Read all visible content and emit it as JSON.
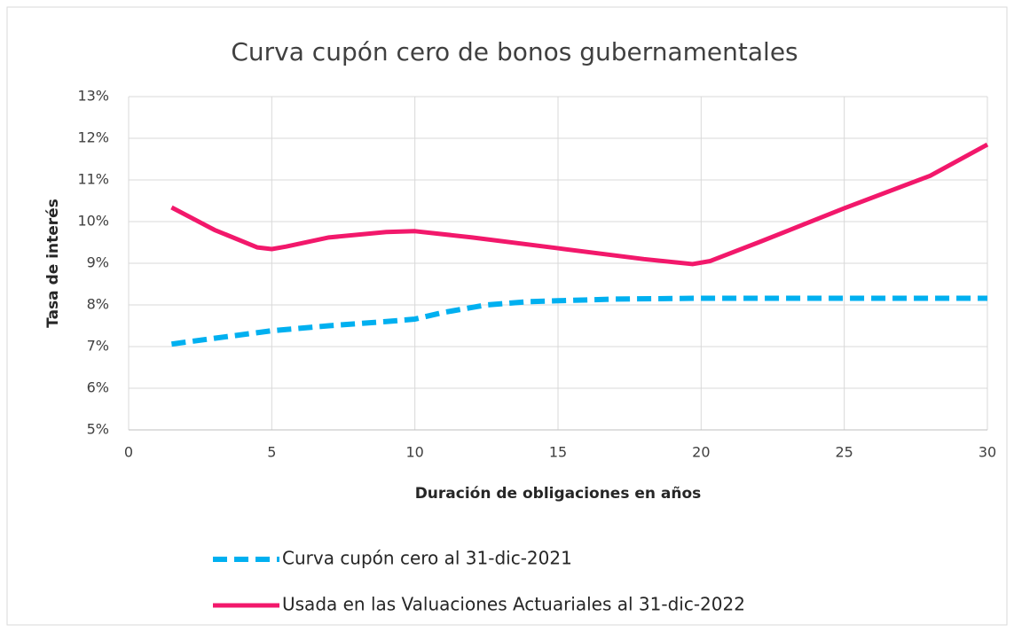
{
  "chart_data": {
    "type": "line",
    "title": "Curva cupón cero de bonos gubernamentales",
    "x_label": "Duración de obligaciones en años",
    "y_label": "Tasa de interés",
    "xlim": [
      0,
      30
    ],
    "xticks": [
      0,
      5,
      10,
      15,
      20,
      25,
      30
    ],
    "ylim": [
      5,
      13
    ],
    "yticks": [
      {
        "value": 5,
        "label": "5%"
      },
      {
        "value": 6,
        "label": "6%"
      },
      {
        "value": 7,
        "label": "7%"
      },
      {
        "value": 8,
        "label": "8%"
      },
      {
        "value": 9,
        "label": "9%"
      },
      {
        "value": 10,
        "label": "10%"
      },
      {
        "value": 11,
        "label": "11%"
      },
      {
        "value": 12,
        "label": "12%"
      },
      {
        "value": 13,
        "label": "13%"
      }
    ],
    "grid": true,
    "legend": "bottom",
    "series": [
      {
        "name": "Curva cupón cero al 31-dic-2021",
        "color": "#00b0f0",
        "style": "dashed",
        "x": [
          1.5,
          3,
          5,
          7,
          9,
          10,
          11,
          12.5,
          14,
          15,
          17,
          20,
          25,
          30
        ],
        "values": [
          7.06,
          7.2,
          7.38,
          7.5,
          7.6,
          7.66,
          7.82,
          8.0,
          8.08,
          8.1,
          8.14,
          8.16,
          8.16,
          8.16
        ]
      },
      {
        "name": "Usada en las Valuaciones Actuariales al 31-dic-2022",
        "color": "#f2186b",
        "style": "solid",
        "x": [
          1.5,
          3,
          4.5,
          5,
          5.5,
          7,
          9,
          10,
          12,
          15,
          18,
          19.7,
          20.3,
          22,
          25,
          28,
          30
        ],
        "values": [
          10.34,
          9.8,
          9.38,
          9.34,
          9.4,
          9.62,
          9.75,
          9.77,
          9.62,
          9.36,
          9.1,
          8.98,
          9.05,
          9.5,
          10.32,
          11.1,
          11.85
        ]
      }
    ]
  }
}
